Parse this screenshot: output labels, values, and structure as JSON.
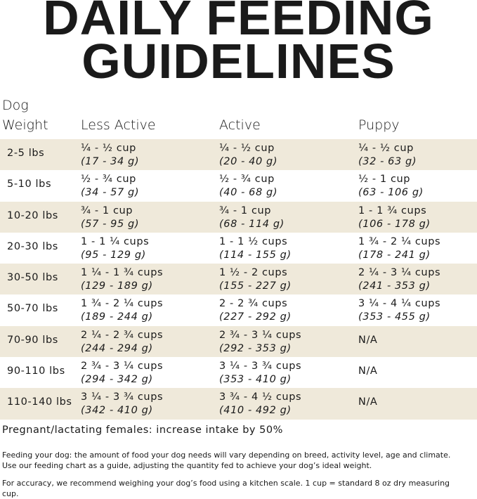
{
  "header": {
    "title_lines": [
      "DAILY FEEDING",
      "GUIDELINES"
    ]
  },
  "table": {
    "headers": [
      "Dog Weight",
      "Less Active",
      "Active",
      "Puppy"
    ],
    "rows": [
      [
        "2-5 lbs",
        [
          "¼ - ½ cup",
          "(17 - 34 g)"
        ],
        [
          "¼ - ½ cup",
          "(20 - 40 g)"
        ],
        [
          "¼ - ½ cup",
          "(32 - 63 g)"
        ]
      ],
      [
        "5-10 lbs",
        [
          "½ - ¾ cup",
          "(34 - 57 g)"
        ],
        [
          "½ - ¾ cup",
          "(40 - 68 g)"
        ],
        [
          "½ - 1 cup",
          "(63 - 106 g)"
        ]
      ],
      [
        "10-20 lbs",
        [
          "¾ - 1 cup",
          "(57 - 95 g)"
        ],
        [
          "¾ - 1 cup",
          "(68 - 114 g)"
        ],
        [
          "1 - 1 ¾ cups",
          "(106 - 178 g)"
        ]
      ],
      [
        "20-30 lbs",
        [
          "1 - 1 ¼ cups",
          "(95 - 129 g)"
        ],
        [
          "1 - 1 ½ cups",
          "(114 - 155 g)"
        ],
        [
          "1 ¾ - 2 ¼ cups",
          "(178 - 241 g)"
        ]
      ],
      [
        "30-50 lbs",
        [
          "1 ¼ - 1 ¾ cups",
          "(129 - 189 g)"
        ],
        [
          "1 ½ - 2 cups",
          "(155 - 227 g)"
        ],
        [
          "2 ¼ - 3 ¼ cups",
          "(241 - 353 g)"
        ]
      ],
      [
        "50-70 lbs",
        [
          "1 ¾ - 2 ¼ cups",
          "(189 - 244 g)"
        ],
        [
          "2 - 2 ¾ cups",
          "(227 - 292 g)"
        ],
        [
          "3 ¼ - 4 ¼ cups",
          "(353 - 455 g)"
        ]
      ],
      [
        "70-90 lbs",
        [
          "2 ¼ - 2 ¾ cups",
          "(244 - 294 g)"
        ],
        [
          "2 ¾ - 3 ¼ cups",
          "(292 - 353 g)"
        ],
        "N/A"
      ],
      [
        "90-110 lbs",
        [
          "2 ¾ - 3 ¼ cups",
          "(294 - 342 g)"
        ],
        [
          "3 ¼ - 3 ¾ cups",
          "(353 - 410 g)"
        ],
        "N/A"
      ],
      [
        "110-140 lbs",
        [
          "3 ¼ - 3 ¾ cups",
          "(342 - 410 g)"
        ],
        [
          "3 ¾ - 4 ½ cups",
          "(410 - 492 g)"
        ],
        "N/A"
      ]
    ]
  },
  "notes": {
    "pregnant": "Pregnant/lactating females: increase intake by 50%",
    "paragraphs": [
      "Feeding your dog: the amount of food your dog needs will vary depending on breed, activity level, age and climate. Use our feeding chart as a guide, adjusting the quantity fed to achieve your dog’s ideal weight.",
      "For accuracy, we recommend weighing your dog’s food using a kitchen scale. 1 cup = standard 8 oz dry measuring cup."
    ]
  }
}
